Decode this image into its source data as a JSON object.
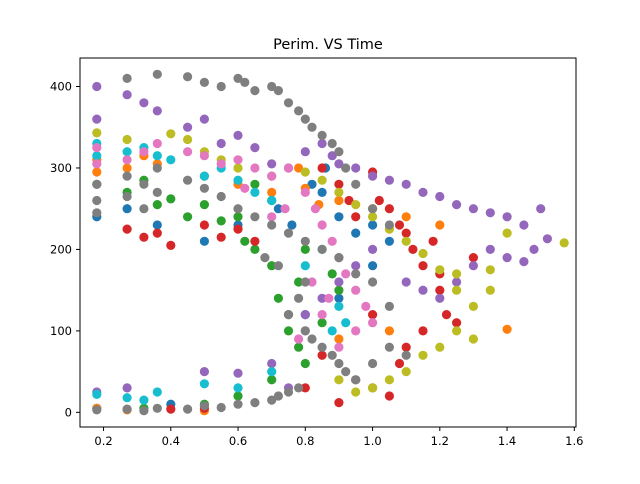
{
  "chart_data": {
    "type": "scatter",
    "title": "Perim. VS Time",
    "xlabel": "",
    "ylabel": "",
    "xlim": [
      0.13,
      1.605
    ],
    "ylim": [
      -18,
      435
    ],
    "xticks": [
      0.2,
      0.4,
      0.6,
      0.8,
      1.0,
      1.2,
      1.4,
      1.6
    ],
    "xtick_labels": [
      "0.2",
      "0.4",
      "0.6",
      "0.8",
      "1.0",
      "1.2",
      "1.4",
      "1.6"
    ],
    "yticks": [
      0,
      100,
      200,
      300,
      400
    ],
    "ytick_labels": [
      "0",
      "100",
      "200",
      "300",
      "400"
    ],
    "grid": false,
    "legend": "none",
    "series": [
      {
        "color": "#1f77b4",
        "points": [
          [
            0.18,
            240
          ],
          [
            0.27,
            250
          ],
          [
            0.36,
            230
          ],
          [
            0.5,
            210
          ],
          [
            0.6,
            230
          ],
          [
            0.72,
            250
          ],
          [
            0.82,
            280
          ],
          [
            0.85,
            270
          ],
          [
            0.9,
            240
          ],
          [
            0.95,
            220
          ],
          [
            1.0,
            230
          ],
          [
            1.05,
            210
          ],
          [
            0.18,
            5
          ],
          [
            0.4,
            10
          ],
          [
            0.8,
            120
          ],
          [
            0.9,
            140
          ],
          [
            1.0,
            180
          ],
          [
            0.86,
            300
          ],
          [
            0.76,
            230
          ]
        ]
      },
      {
        "color": "#ff7f0e",
        "points": [
          [
            0.18,
            310
          ],
          [
            0.18,
            295
          ],
          [
            0.27,
            300
          ],
          [
            0.32,
            315
          ],
          [
            0.36,
            305
          ],
          [
            0.5,
            290
          ],
          [
            0.6,
            280
          ],
          [
            0.7,
            270
          ],
          [
            0.8,
            275
          ],
          [
            0.9,
            260
          ],
          [
            1.0,
            250
          ],
          [
            1.1,
            240
          ],
          [
            1.2,
            230
          ],
          [
            1.4,
            102
          ],
          [
            0.18,
            5
          ],
          [
            0.27,
            3
          ],
          [
            0.5,
            2
          ],
          [
            0.9,
            90
          ],
          [
            1.05,
            100
          ],
          [
            0.78,
            300
          ],
          [
            0.84,
            255
          ]
        ]
      },
      {
        "color": "#2ca02c",
        "points": [
          [
            0.18,
            280
          ],
          [
            0.27,
            270
          ],
          [
            0.32,
            285
          ],
          [
            0.4,
            262
          ],
          [
            0.45,
            240
          ],
          [
            0.5,
            255
          ],
          [
            0.55,
            235
          ],
          [
            0.6,
            240
          ],
          [
            0.65,
            200
          ],
          [
            0.7,
            180
          ],
          [
            0.72,
            140
          ],
          [
            0.75,
            100
          ],
          [
            0.78,
            80
          ],
          [
            0.8,
            60
          ],
          [
            0.85,
            110
          ],
          [
            0.9,
            150
          ],
          [
            0.65,
            280
          ],
          [
            0.7,
            260
          ],
          [
            0.8,
            200
          ],
          [
            0.88,
            170
          ],
          [
            0.32,
            5
          ],
          [
            0.5,
            10
          ],
          [
            0.6,
            20
          ],
          [
            0.7,
            40
          ],
          [
            0.75,
            120
          ],
          [
            0.78,
            160
          ],
          [
            0.36,
            255
          ],
          [
            0.62,
            210
          ]
        ]
      },
      {
        "color": "#d62728",
        "points": [
          [
            0.27,
            225
          ],
          [
            0.32,
            215
          ],
          [
            0.36,
            220
          ],
          [
            0.4,
            205
          ],
          [
            0.5,
            230
          ],
          [
            0.55,
            215
          ],
          [
            0.6,
            225
          ],
          [
            0.65,
            210
          ],
          [
            0.85,
            300
          ],
          [
            0.9,
            280
          ],
          [
            0.93,
            260
          ],
          [
            0.95,
            240
          ],
          [
            1.0,
            295
          ],
          [
            1.02,
            260
          ],
          [
            1.05,
            250
          ],
          [
            1.08,
            230
          ],
          [
            1.1,
            220
          ],
          [
            1.12,
            200
          ],
          [
            1.15,
            180
          ],
          [
            1.18,
            210
          ],
          [
            1.2,
            150
          ],
          [
            1.22,
            120
          ],
          [
            1.25,
            110
          ],
          [
            0.95,
            40
          ],
          [
            1.0,
            30
          ],
          [
            1.05,
            20
          ],
          [
            1.08,
            60
          ],
          [
            1.1,
            80
          ],
          [
            1.15,
            100
          ],
          [
            0.9,
            12
          ],
          [
            0.8,
            30
          ],
          [
            0.4,
            4
          ],
          [
            0.5,
            5
          ],
          [
            1.0,
            120
          ],
          [
            0.85,
            70
          ],
          [
            1.2,
            170
          ],
          [
            1.3,
            190
          ]
        ]
      },
      {
        "color": "#9467bd",
        "points": [
          [
            0.18,
            400
          ],
          [
            0.18,
            360
          ],
          [
            0.27,
            390
          ],
          [
            0.32,
            380
          ],
          [
            0.36,
            370
          ],
          [
            0.45,
            350
          ],
          [
            0.5,
            360
          ],
          [
            0.55,
            330
          ],
          [
            0.6,
            340
          ],
          [
            0.65,
            325
          ],
          [
            0.7,
            305
          ],
          [
            0.75,
            300
          ],
          [
            0.8,
            320
          ],
          [
            0.85,
            330
          ],
          [
            0.88,
            315
          ],
          [
            0.9,
            305
          ],
          [
            0.95,
            300
          ],
          [
            1.0,
            290
          ],
          [
            1.05,
            285
          ],
          [
            1.1,
            280
          ],
          [
            1.15,
            270
          ],
          [
            1.2,
            265
          ],
          [
            1.25,
            255
          ],
          [
            1.3,
            250
          ],
          [
            1.35,
            245
          ],
          [
            1.4,
            240
          ],
          [
            1.45,
            230
          ],
          [
            1.5,
            250
          ],
          [
            1.52,
            213
          ],
          [
            1.48,
            200
          ],
          [
            1.45,
            185
          ],
          [
            1.4,
            190
          ],
          [
            1.35,
            200
          ],
          [
            1.3,
            180
          ],
          [
            1.25,
            160
          ],
          [
            1.2,
            140
          ],
          [
            1.15,
            150
          ],
          [
            1.1,
            160
          ],
          [
            1.0,
            200
          ],
          [
            0.95,
            180
          ],
          [
            0.9,
            160
          ],
          [
            0.85,
            140
          ],
          [
            0.8,
            120
          ],
          [
            0.18,
            25
          ],
          [
            0.27,
            30
          ],
          [
            0.5,
            50
          ],
          [
            0.6,
            48
          ],
          [
            0.7,
            60
          ],
          [
            0.75,
            30
          ]
        ]
      },
      {
        "color": "#bcbd22",
        "points": [
          [
            0.18,
            343
          ],
          [
            0.27,
            335
          ],
          [
            0.4,
            342
          ],
          [
            0.45,
            335
          ],
          [
            0.5,
            320
          ],
          [
            0.55,
            310
          ],
          [
            0.6,
            300
          ],
          [
            0.7,
            290
          ],
          [
            0.8,
            295
          ],
          [
            0.85,
            285
          ],
          [
            0.9,
            270
          ],
          [
            0.95,
            255
          ],
          [
            1.0,
            240
          ],
          [
            1.05,
            225
          ],
          [
            1.1,
            210
          ],
          [
            1.15,
            195
          ],
          [
            1.2,
            175
          ],
          [
            1.25,
            150
          ],
          [
            1.3,
            130
          ],
          [
            1.35,
            150
          ],
          [
            1.4,
            220
          ],
          [
            1.57,
            208
          ],
          [
            1.25,
            100
          ],
          [
            1.2,
            80
          ],
          [
            1.15,
            70
          ],
          [
            1.1,
            50
          ],
          [
            1.05,
            40
          ],
          [
            1.0,
            30
          ],
          [
            0.95,
            25
          ],
          [
            0.9,
            40
          ],
          [
            1.3,
            90
          ],
          [
            1.25,
            170
          ],
          [
            1.35,
            175
          ]
        ]
      },
      {
        "color": "#17becf",
        "points": [
          [
            0.18,
            330
          ],
          [
            0.18,
            315
          ],
          [
            0.27,
            320
          ],
          [
            0.32,
            325
          ],
          [
            0.36,
            315
          ],
          [
            0.4,
            310
          ],
          [
            0.5,
            290
          ],
          [
            0.55,
            300
          ],
          [
            0.6,
            285
          ],
          [
            0.65,
            270
          ],
          [
            0.7,
            260
          ],
          [
            0.9,
            130
          ],
          [
            0.92,
            110
          ],
          [
            0.88,
            100
          ],
          [
            0.18,
            22
          ],
          [
            0.27,
            18
          ],
          [
            0.32,
            15
          ],
          [
            0.36,
            25
          ],
          [
            0.5,
            35
          ],
          [
            0.6,
            30
          ],
          [
            0.7,
            50
          ],
          [
            0.85,
            200
          ],
          [
            0.8,
            180
          ]
        ]
      },
      {
        "color": "#e377c2",
        "points": [
          [
            0.18,
            325
          ],
          [
            0.18,
            305
          ],
          [
            0.27,
            310
          ],
          [
            0.32,
            320
          ],
          [
            0.36,
            330
          ],
          [
            0.45,
            320
          ],
          [
            0.5,
            315
          ],
          [
            0.55,
            305
          ],
          [
            0.6,
            310
          ],
          [
            0.65,
            300
          ],
          [
            0.7,
            290
          ],
          [
            0.75,
            300
          ],
          [
            0.8,
            270
          ],
          [
            0.83,
            250
          ],
          [
            0.85,
            230
          ],
          [
            0.88,
            210
          ],
          [
            0.9,
            190
          ],
          [
            0.92,
            170
          ],
          [
            0.95,
            150
          ],
          [
            0.98,
            130
          ],
          [
            0.85,
            120
          ],
          [
            0.8,
            100
          ],
          [
            0.78,
            90
          ],
          [
            0.9,
            80
          ],
          [
            0.95,
            100
          ],
          [
            1.0,
            110
          ],
          [
            0.82,
            160
          ],
          [
            0.87,
            140
          ],
          [
            0.74,
            250
          ],
          [
            0.7,
            240
          ],
          [
            0.62,
            275
          ]
        ]
      },
      {
        "color": "#7f7f7f",
        "points": [
          [
            0.18,
            280
          ],
          [
            0.18,
            260
          ],
          [
            0.18,
            245
          ],
          [
            0.27,
            410
          ],
          [
            0.27,
            290
          ],
          [
            0.27,
            265
          ],
          [
            0.32,
            280
          ],
          [
            0.32,
            250
          ],
          [
            0.36,
            415
          ],
          [
            0.36,
            300
          ],
          [
            0.36,
            270
          ],
          [
            0.45,
            412
          ],
          [
            0.45,
            285
          ],
          [
            0.5,
            405
          ],
          [
            0.5,
            275
          ],
          [
            0.55,
            400
          ],
          [
            0.55,
            265
          ],
          [
            0.6,
            410
          ],
          [
            0.6,
            250
          ],
          [
            0.62,
            405
          ],
          [
            0.65,
            395
          ],
          [
            0.65,
            240
          ],
          [
            0.7,
            400
          ],
          [
            0.7,
            230
          ],
          [
            0.72,
            395
          ],
          [
            0.75,
            380
          ],
          [
            0.75,
            220
          ],
          [
            0.78,
            370
          ],
          [
            0.8,
            360
          ],
          [
            0.8,
            210
          ],
          [
            0.82,
            350
          ],
          [
            0.85,
            340
          ],
          [
            0.85,
            200
          ],
          [
            0.88,
            330
          ],
          [
            0.9,
            320
          ],
          [
            0.9,
            190
          ],
          [
            0.92,
            300
          ],
          [
            0.95,
            280
          ],
          [
            0.95,
            170
          ],
          [
            1.0,
            250
          ],
          [
            1.0,
            160
          ],
          [
            1.05,
            230
          ],
          [
            1.05,
            130
          ],
          [
            0.8,
            100
          ],
          [
            0.82,
            90
          ],
          [
            0.85,
            80
          ],
          [
            0.88,
            70
          ],
          [
            0.9,
            60
          ],
          [
            0.92,
            50
          ],
          [
            0.95,
            40
          ],
          [
            1.0,
            60
          ],
          [
            1.05,
            80
          ],
          [
            1.1,
            70
          ],
          [
            0.18,
            3
          ],
          [
            0.27,
            4
          ],
          [
            0.32,
            2
          ],
          [
            0.36,
            5
          ],
          [
            0.45,
            4
          ],
          [
            0.5,
            8
          ],
          [
            0.55,
            6
          ],
          [
            0.6,
            10
          ],
          [
            0.65,
            12
          ],
          [
            0.7,
            15
          ],
          [
            0.72,
            20
          ],
          [
            0.75,
            25
          ],
          [
            0.78,
            30
          ],
          [
            0.75,
            120
          ],
          [
            0.78,
            140
          ],
          [
            0.8,
            160
          ],
          [
            0.72,
            180
          ],
          [
            0.68,
            190
          ]
        ]
      }
    ]
  }
}
